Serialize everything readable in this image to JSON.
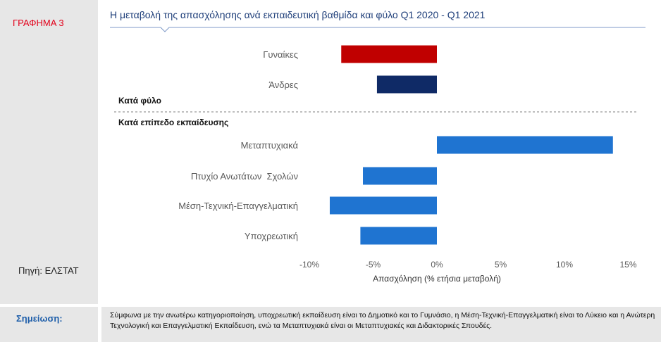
{
  "sidebar": {
    "graph_label": "ΓΡΑΦΗΜΑ 3",
    "source": "Πηγή: ΕΛΣΤΑΤ"
  },
  "note": {
    "label": "Σημείωση:",
    "text": "Σύμφωνα με την ανωτέρω κατηγοριοποίηση, υποχρεωτική εκπαίδευση είναι το Δημοτικό και το Γυμνάσιο, η Μέση-Τεχνική-Επαγγελματική είναι το Λύκειο και η Ανώτερη Τεχνολογική και Επαγγελματική Εκπαίδευση, ενώ τα Μεταπτυχιακά είναι οι Μεταπτυχιακές και Διδακτορικές Σπουδές."
  },
  "chart_data": {
    "type": "bar",
    "orientation": "horizontal",
    "title": "Η μεταβολή της απασχόλησης ανά εκπαιδευτική βαθμίδα και φύλο Q1 2020 - Q1 2021",
    "xlabel": "Απασχόληση (% ετήσια μεταβολή)",
    "xlim": [
      -10,
      15
    ],
    "xticks": [
      "-10%",
      "-5%",
      "0%",
      "5%",
      "10%",
      "15%"
    ],
    "xtick_values": [
      -10,
      -5,
      0,
      5,
      10,
      15
    ],
    "grid": false,
    "groups": [
      {
        "label": "Κατά φύλο",
        "bars": [
          {
            "category": "Γυναίκες",
            "value": -7.5,
            "color": "#c00000"
          },
          {
            "category": "Άνδρες",
            "value": -4.7,
            "color": "#0f2a66"
          }
        ]
      },
      {
        "label": "Κατά επίπεδο εκπαίδευσης",
        "bars": [
          {
            "category": "Μεταπτυχιακά",
            "value": 13.8,
            "color": "#1f74d1"
          },
          {
            "category": "Πτυχίο Ανωτάτων  Σχολών",
            "value": -5.8,
            "color": "#1f74d1"
          },
          {
            "category": "Μέση-Τεχνική-Επαγγελματική",
            "value": -8.4,
            "color": "#1f74d1"
          },
          {
            "category": "Υποχρεωτική",
            "value": -6.0,
            "color": "#1f74d1"
          }
        ]
      }
    ]
  }
}
